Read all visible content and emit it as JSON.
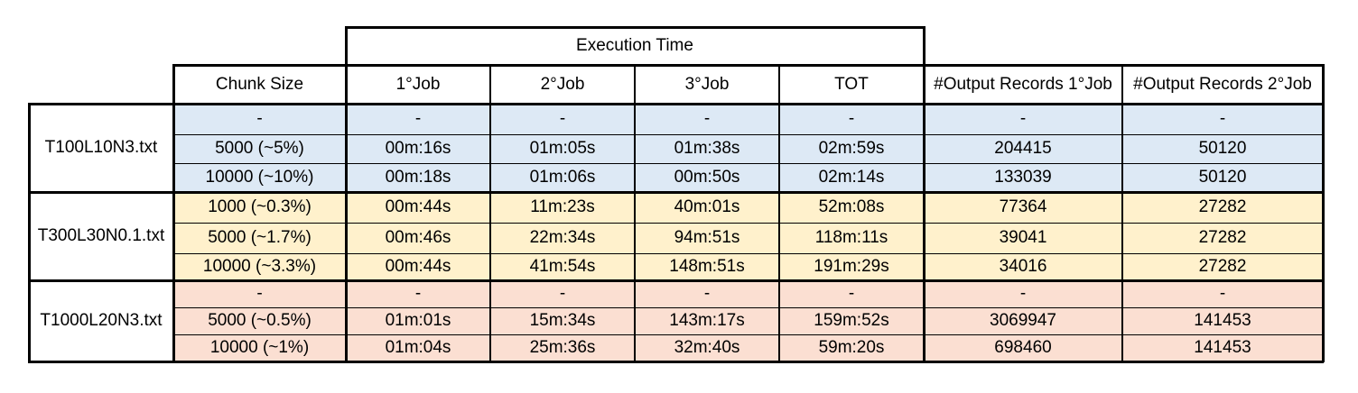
{
  "header": {
    "execution_time": "Execution Time",
    "columns": [
      "Chunk Size",
      "1°Job",
      "2°Job",
      "3°Job",
      "TOT",
      "#Output Records 1°Job",
      "#Output Records 2°Job"
    ]
  },
  "groups": [
    {
      "name": "T100L10N3.txt",
      "color": "#dde9f5",
      "rows": [
        [
          "-",
          "-",
          "-",
          "-",
          "-",
          "-",
          "-"
        ],
        [
          "5000 (~5%)",
          "00m:16s",
          "01m:05s",
          "01m:38s",
          "02m:59s",
          "204415",
          "50120"
        ],
        [
          "10000 (~10%)",
          "00m:18s",
          "01m:06s",
          "00m:50s",
          "02m:14s",
          "133039",
          "50120"
        ]
      ]
    },
    {
      "name": "T300L30N0.1.txt",
      "color": "#fff1cc",
      "rows": [
        [
          "1000 (~0.3%)",
          "00m:44s",
          "11m:23s",
          "40m:01s",
          "52m:08s",
          "77364",
          "27282"
        ],
        [
          "5000 (~1.7%)",
          "00m:46s",
          "22m:34s",
          "94m:51s",
          "118m:11s",
          "39041",
          "27282"
        ],
        [
          "10000 (~3.3%)",
          "00m:44s",
          "41m:54s",
          "148m:51s",
          "191m:29s",
          "34016",
          "27282"
        ]
      ]
    },
    {
      "name": "T1000L20N3.txt",
      "color": "#fbdfd2",
      "rows": [
        [
          "-",
          "-",
          "-",
          "-",
          "-",
          "-",
          "-"
        ],
        [
          "5000 (~0.5%)",
          "01m:01s",
          "15m:34s",
          "143m:17s",
          "159m:52s",
          "3069947",
          "141453"
        ],
        [
          "10000 (~1%)",
          "01m:04s",
          "25m:36s",
          "32m:40s",
          "59m:20s",
          "698460",
          "141453"
        ]
      ]
    }
  ]
}
